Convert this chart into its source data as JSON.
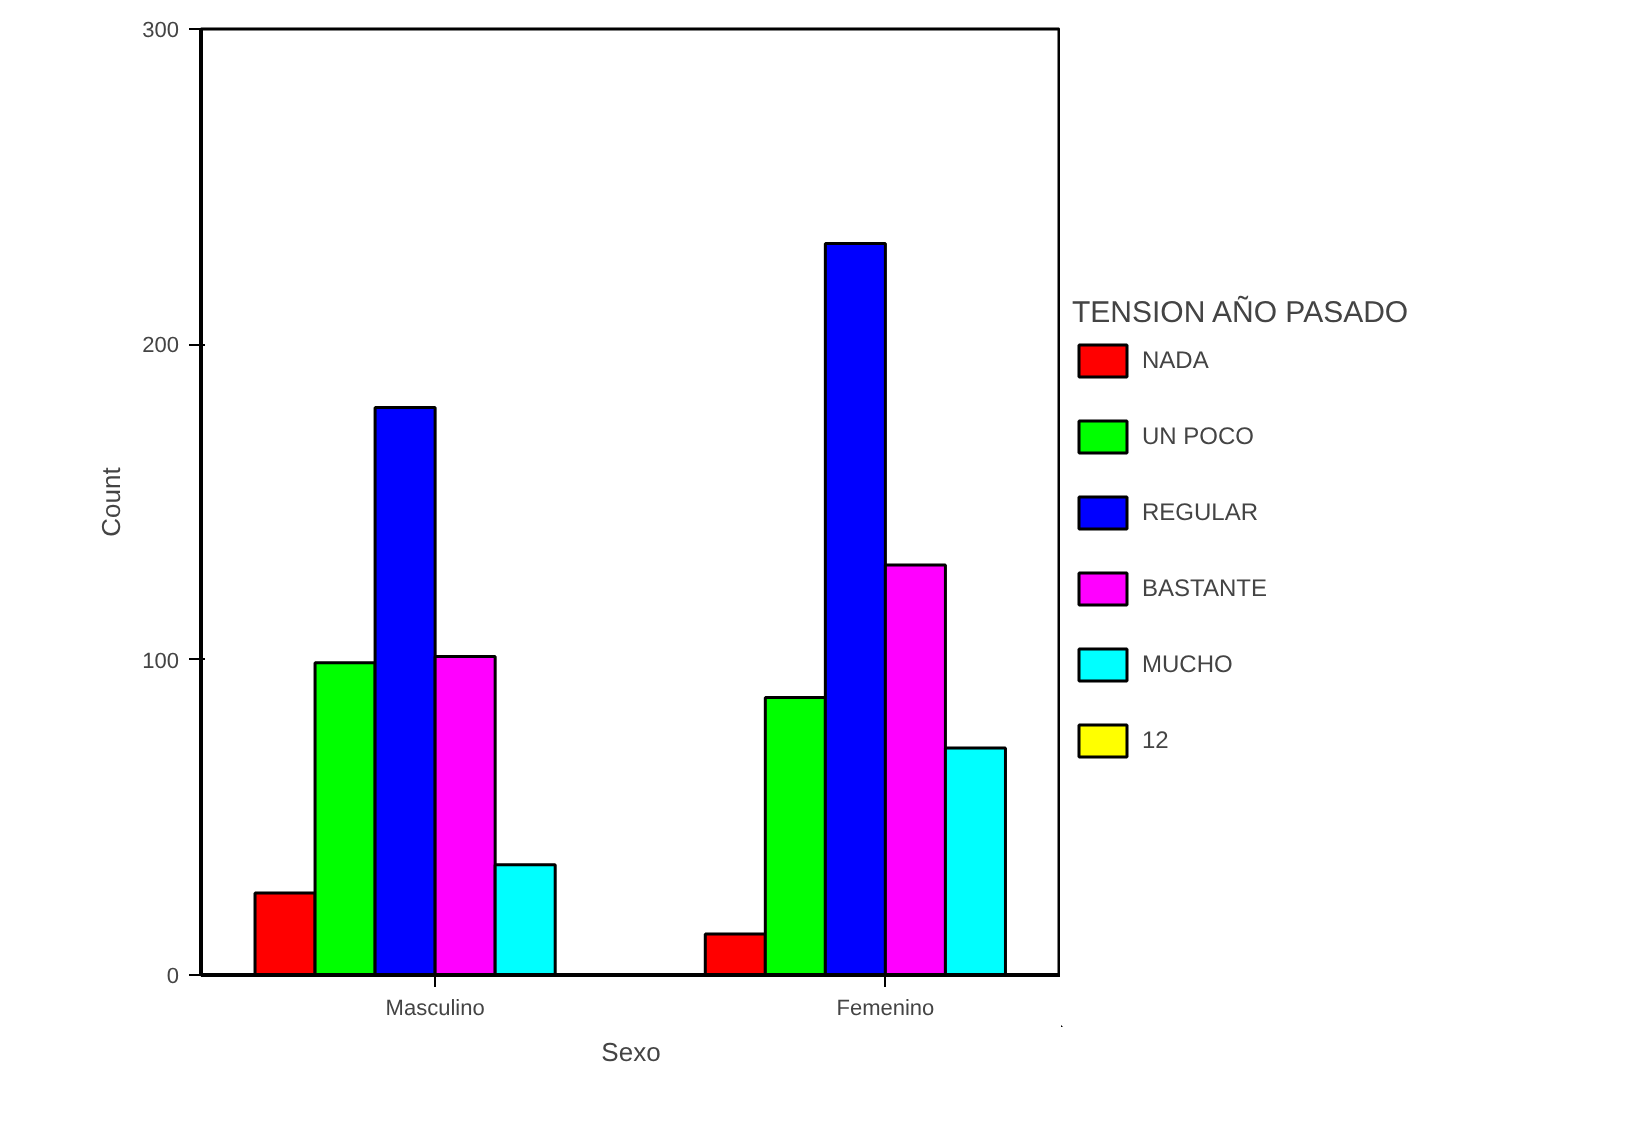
{
  "chart_data": {
    "type": "bar",
    "xlabel": "Sexo",
    "ylabel": "Count",
    "legend_title": "TENSION AÑO PASADO",
    "categories": [
      "Masculino",
      "Femenino"
    ],
    "series": [
      {
        "name": "NADA",
        "color": "#ff0000",
        "values": [
          26,
          13
        ]
      },
      {
        "name": "UN POCO",
        "color": "#00ff00",
        "values": [
          99,
          88
        ]
      },
      {
        "name": "REGULAR",
        "color": "#0000ff",
        "values": [
          180,
          232
        ]
      },
      {
        "name": "BASTANTE",
        "color": "#ff00ff",
        "values": [
          101,
          130
        ]
      },
      {
        "name": "MUCHO",
        "color": "#00ffff",
        "values": [
          35,
          72
        ]
      },
      {
        "name": "12",
        "color": "#ffff00",
        "values": [
          null,
          null
        ]
      }
    ],
    "ylim": [
      0,
      300
    ],
    "yticks": [
      0,
      100,
      200,
      300
    ],
    "grid": false,
    "legend": "right"
  }
}
